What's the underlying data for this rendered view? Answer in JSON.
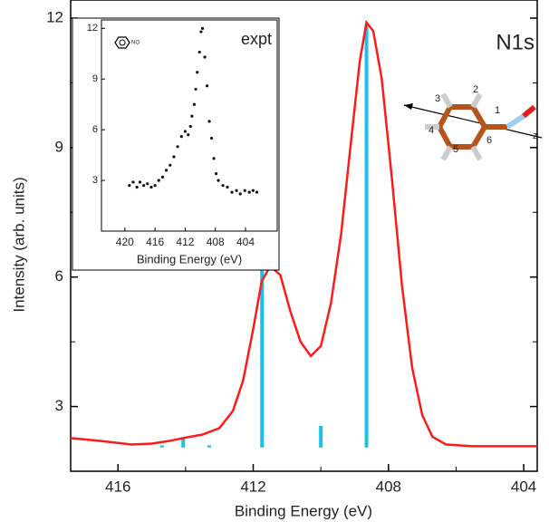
{
  "chart_data": [
    {
      "type": "line",
      "annotation": "N1s",
      "x_label": "Binding Energy (eV)",
      "y_label": "Intensity (arb. units)",
      "xlim": [
        417.4,
        403.6
      ],
      "ylim": [
        1.5,
        12
      ],
      "xticks": [
        416,
        412,
        408,
        404
      ],
      "xminor": [
        414,
        410,
        406
      ],
      "yticks": [
        3,
        6,
        9,
        12
      ],
      "yminor": [
        4.5,
        7.5,
        10.5
      ],
      "series": [
        {
          "color": "#ff1a1a",
          "x": [
            417.4,
            416.5,
            415.6,
            415,
            414.5,
            414,
            413.5,
            413,
            412.6,
            412.3,
            412.0,
            411.75,
            411.5,
            411.2,
            410.9,
            410.6,
            410.3,
            410.0,
            409.7,
            409.4,
            409.1,
            408.85,
            408.65,
            408.45,
            408.2,
            407.9,
            407.6,
            407.3,
            407.0,
            406.7,
            406.3,
            405.5,
            403.6
          ],
          "values": [
            2.27,
            2.2,
            2.12,
            2.14,
            2.2,
            2.28,
            2.35,
            2.5,
            2.9,
            3.6,
            4.8,
            5.9,
            6.25,
            6.05,
            5.2,
            4.5,
            4.17,
            4.4,
            5.4,
            7.0,
            9.2,
            11.0,
            11.9,
            11.7,
            10.6,
            8.3,
            5.8,
            3.9,
            2.8,
            2.3,
            2.12,
            2.08,
            2.08
          ]
        }
      ],
      "sticks": {
        "color": "#19c0ea",
        "base": 2.05,
        "x": [
          414.7,
          414.07,
          413.3,
          411.74,
          410.0,
          408.65
        ],
        "values": [
          2.1,
          2.25,
          2.1,
          6.2,
          2.55,
          11.85
        ]
      },
      "molecule": {
        "atom_labels": [
          "1",
          "2",
          "3",
          "4",
          "5",
          "6"
        ],
        "axis_label": "z"
      }
    },
    {
      "type": "scatter",
      "annotation": "expt",
      "icon_label": "NO",
      "x_label": "Binding Energy (eV)",
      "xlim": [
        423.1,
        399.8
      ],
      "ylim": [
        0,
        12.5
      ],
      "xticks": [
        420,
        416,
        412,
        408,
        404
      ],
      "yticks": [
        3,
        6,
        9,
        12
      ],
      "color": "#111111",
      "x": [
        419.4,
        418.9,
        418.4,
        418,
        417.5,
        417,
        416.5,
        416,
        415.5,
        415,
        414.5,
        414,
        413.5,
        413,
        412.5,
        412,
        411.6,
        411.3,
        411.1,
        410.8,
        410.6,
        410.4,
        410.1,
        409.9,
        409.7,
        409.4,
        409.1,
        408.8,
        408.5,
        408.2,
        407.9,
        407.6,
        407,
        406.4,
        405.8,
        405.2,
        404.7,
        404.1,
        403.5,
        403,
        402.5
      ],
      "values": [
        2.7,
        2.9,
        2.6,
        2.9,
        2.7,
        2.8,
        2.6,
        2.7,
        3.0,
        3.2,
        3.6,
        3.9,
        4.4,
        5.0,
        5.6,
        5.9,
        5.7,
        6.2,
        6.8,
        7.5,
        8.4,
        9.4,
        10.6,
        11.8,
        12.0,
        10.3,
        8.6,
        6.5,
        5.5,
        4.3,
        3.4,
        3.0,
        2.7,
        2.6,
        2.3,
        2.4,
        2.2,
        2.4,
        2.3,
        2.4,
        2.3
      ]
    }
  ]
}
